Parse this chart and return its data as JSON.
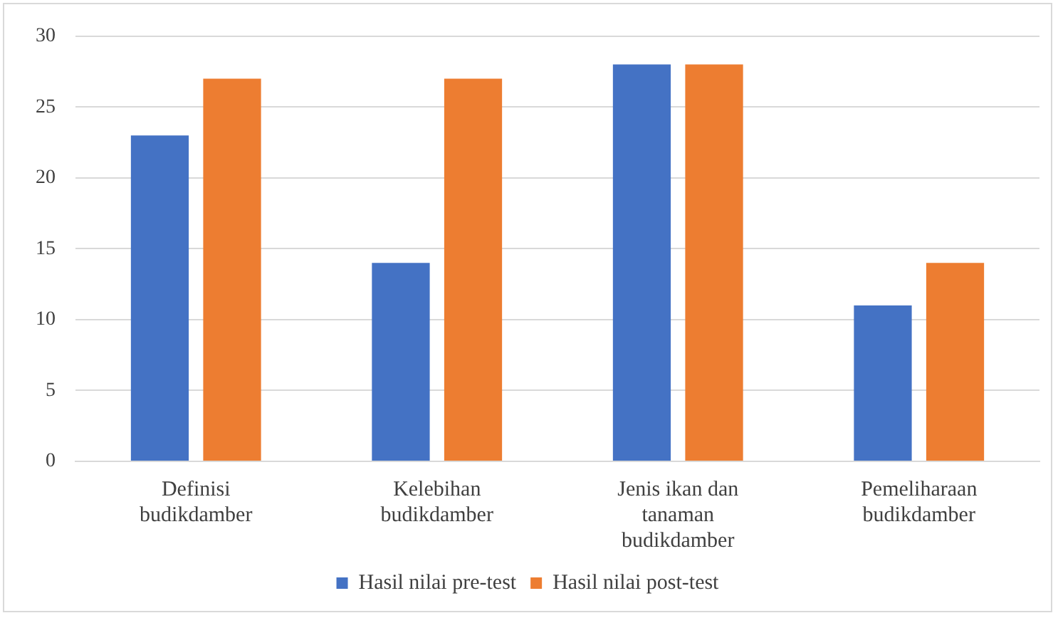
{
  "chart_data": {
    "type": "bar",
    "categories": [
      "Definisi budikdamber",
      "Kelebihan budikdamber",
      "Jenis ikan dan tanaman budikdamber",
      "Pemeliharaan budikdamber"
    ],
    "series": [
      {
        "name": "Hasil nilai pre-test",
        "color": "#4472c4",
        "values": [
          23,
          14,
          28,
          11
        ]
      },
      {
        "name": "Hasil nilai post-test",
        "color": "#ed7d31",
        "values": [
          27,
          27,
          28,
          14
        ]
      }
    ],
    "ylim": [
      0,
      30
    ],
    "yticks": [
      0,
      5,
      10,
      15,
      20,
      25,
      30
    ],
    "grid": "y",
    "legend": "bottom"
  }
}
